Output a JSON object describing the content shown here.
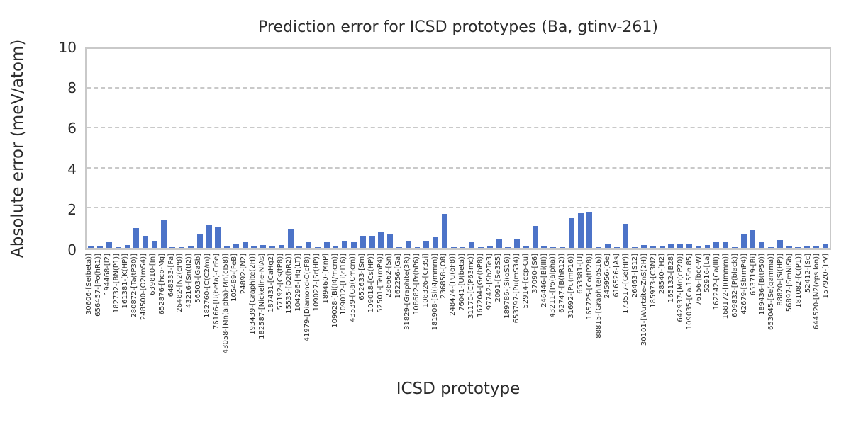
{
  "colors": {
    "bar": "#4c73c8",
    "grid": "#c9c9c9",
    "text": "#2b2b2b",
    "background": "#ffffff"
  },
  "chart_data": {
    "type": "bar",
    "title": "Prediction error for ICSD prototypes (Ba, gtinv-261)",
    "xlabel": "ICSD prototype",
    "ylabel": "Absolute error (meV/atom)",
    "ylim": [
      0,
      10
    ],
    "yticks": [
      0,
      2,
      4,
      6,
      8,
      10
    ],
    "gridline_values": [
      2,
      4,
      6,
      8
    ],
    "grid_style": "horizontal dashed",
    "legend": "none",
    "categories": [
      "30606-[Se(beta)]",
      "656457-[Po(hR1)]",
      "194468-[I2]",
      "182732-[BN(P1)]",
      "161381-[K(HP)]",
      "280872-[Ta(tP30)]",
      "248500-[O2(mS4)]",
      "639810-[In]",
      "652876-[hcp-Mg]",
      "648333-[Pa]",
      "26482-[N2(cP8)]",
      "43216-[Sn(tI2)]",
      "56503-[GaSb]",
      "182760-[C(C2/m)]",
      "76166-[U(beta)-CrFe]",
      "43058-[Mn(alpha)-Mn(cI58)]",
      "105489-[FeB]",
      "24892-[N2]",
      "193439-[Graphite(2H)]",
      "182587-[Nickeline-NiAs]",
      "187431-[CaHg2]",
      "57192-[Cs(tP8)]",
      "15535-[O2(hR2)]",
      "104296-[Hg(LT)]",
      "41979-[Diamond-C(cF8)]",
      "109027-[Sr(HP)]",
      "189460-[MnP]",
      "109028-[Bi(I4/mcm)]",
      "109012-[Li(cI16)]",
      "43539-[Ga(Cmcm)]",
      "652633-[Sm]",
      "109018-[Cs(HP)]",
      "52501-[Te(mP4)]",
      "236662-[Sn]",
      "162256-[Ga]",
      "31829-[Graphite(3R)]",
      "108682-[Pr(hP6)]",
      "108326-[Cr3Si]",
      "181908-[Si(I4/mmm)]",
      "236858-[O8]",
      "248474-[Pu(oF8)]",
      "76041-[U(beta)]",
      "31170-[C(P63mc)]",
      "167204-[Ge(hP8)]",
      "97742-[Sb2Te3]",
      "2091-[Se3S5]",
      "189786-[Si(oS16)]",
      "653797-[Pu(mS34)]",
      "52914-[ccp-Cu]",
      "37090-[S6]",
      "246446-[Bi(III)]",
      "43211-[Po(alpha)]",
      "62747-[B(hR12)]",
      "31692-[Pu(mP16)]",
      "653381-[U]",
      "165725-[Co(tP28)]",
      "88815-[Graphite(oS16)]",
      "245956-[Ge]",
      "616526-[As]",
      "173517-[Ge(HP)]",
      "26463-[S12]",
      "30101-[Wurtzite-ZnS(2H)]",
      "185973-[C3N2]",
      "28540-[H2]",
      "165132-[B28]",
      "642937-[Mn(cP20)]",
      "109035-[Ca.15Sn.85]",
      "76156-[bcc-W]",
      "52916-[La]",
      "162242-[Ca(III)]",
      "168172-[I(Immm)]",
      "609832-[P(black)]",
      "42679-[Sb(mP4)]",
      "653719-[Bi]",
      "189436-[B(tP50)]",
      "653045-[Se(gamma)]",
      "88820-[Si(HP)]",
      "56897-[SmNiSb]",
      "181082-[C(P1)]",
      "52412-[Sc]",
      "644520-[N2(epsilon)]",
      "157920-[IrV]"
    ],
    "values": [
      0.1,
      0.1,
      0.27,
      0.05,
      0.15,
      1.0,
      0.6,
      0.35,
      1.43,
      0.05,
      0.02,
      0.1,
      0.7,
      1.14,
      1.05,
      0.06,
      0.2,
      0.27,
      0.1,
      0.15,
      0.12,
      0.15,
      0.95,
      0.1,
      0.3,
      0.02,
      0.3,
      0.12,
      0.35,
      0.3,
      0.6,
      0.62,
      0.83,
      0.7,
      0.02,
      0.35,
      0.02,
      0.35,
      0.55,
      1.72,
      0.05,
      0.05,
      0.3,
      0.02,
      0.1,
      0.45,
      0.05,
      0.48,
      0.08,
      1.1,
      0.1,
      0.03,
      0.02,
      1.5,
      1.75,
      1.78,
      0.02,
      0.2,
      0.02,
      1.2,
      0.02,
      0.15,
      0.1,
      0.08,
      0.2,
      0.2,
      0.2,
      0.1,
      0.15,
      0.3,
      0.32,
      0.02,
      0.7,
      0.88,
      0.3,
      0.02,
      0.4,
      0.12,
      0.02,
      0.12,
      0.12,
      0.22
    ]
  }
}
